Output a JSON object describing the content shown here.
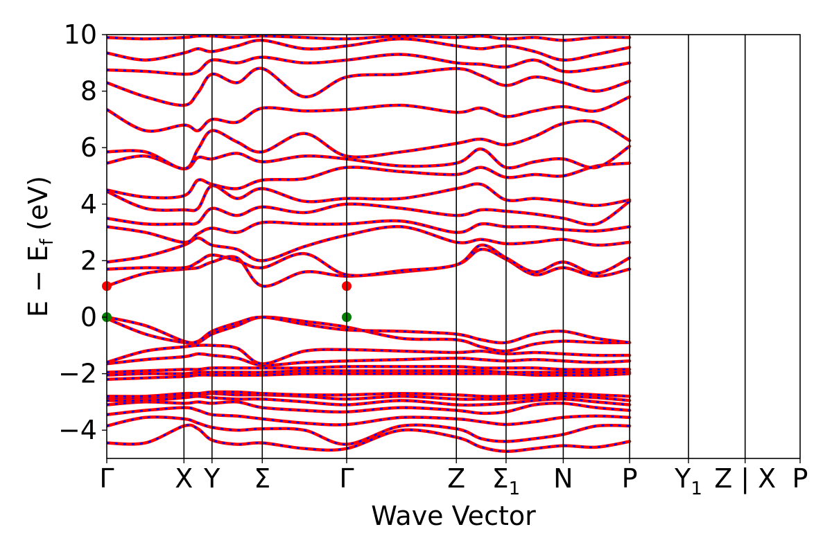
{
  "chart_data": {
    "type": "line",
    "title": "",
    "xlabel": "Wave Vector",
    "ylabel_main": "E − E",
    "ylabel_sub": "f",
    "ylabel_unit": "(eV)",
    "ylim": [
      -5,
      10
    ],
    "yticks": [
      -4,
      -2,
      0,
      2,
      4,
      6,
      8,
      10
    ],
    "ytick_labels": [
      "−4",
      "−2",
      "0",
      "2",
      "4",
      "6",
      "8",
      "10"
    ],
    "kpath": [
      {
        "label": "Γ",
        "sub": "",
        "x": 0.0
      },
      {
        "label": "X",
        "sub": "",
        "x": 0.278
      },
      {
        "label": "Y",
        "sub": "",
        "x": 0.379
      },
      {
        "label": "Σ",
        "sub": "",
        "x": 0.56
      },
      {
        "label": "Γ",
        "sub": "",
        "x": 0.864
      },
      {
        "label": "Z",
        "sub": "",
        "x": 1.259
      },
      {
        "label": "Σ",
        "sub": "1",
        "x": 1.438
      },
      {
        "label": "N",
        "sub": "",
        "x": 1.644
      },
      {
        "label": "P",
        "sub": "",
        "x": 1.883
      },
      {
        "label": "Y",
        "sub": "1",
        "x": 2.095
      },
      {
        "label": "Z | X",
        "sub": "",
        "x": 2.299
      },
      {
        "label": "P",
        "sub": "",
        "x": 2.497
      }
    ],
    "grid": false,
    "colors": {
      "bands_primary": "#ff0000",
      "bands_overlay": "#0000ff",
      "vbm_marker": "#008000",
      "cbm_marker": "#ff0000",
      "kpoint_lines": "#000000"
    },
    "markers": [
      {
        "name": "VBM",
        "x": 0.0,
        "y": 0.0,
        "color": "#008000"
      },
      {
        "name": "VBM",
        "x": 0.864,
        "y": 0.0,
        "color": "#008000"
      },
      {
        "name": "CBM",
        "x": 0.0,
        "y": 1.1,
        "color": "#ff0000"
      },
      {
        "name": "CBM",
        "x": 0.864,
        "y": 1.1,
        "color": "#ff0000"
      }
    ],
    "series": [
      {
        "values": [
          -4.45,
          -4.45,
          -3.85,
          -3.95,
          -4.35,
          -4.5,
          -4.45,
          -4.65,
          -4.65,
          -4.0,
          -4.25,
          -4.6,
          -4.75,
          -4.65,
          -4.55,
          -4.6,
          -4.4
        ]
      },
      {
        "values": [
          -3.85,
          -3.55,
          -3.6,
          -3.75,
          -3.9,
          -4.0,
          -3.95,
          -4.0,
          -4.5,
          -3.85,
          -3.95,
          -4.3,
          -4.4,
          -4.3,
          -4.15,
          -3.85,
          -3.85
        ]
      },
      {
        "values": [
          -3.45,
          -3.3,
          -3.2,
          -3.3,
          -3.45,
          -3.5,
          -3.6,
          -3.75,
          -3.8,
          -3.55,
          -3.6,
          -3.7,
          -3.8,
          -3.7,
          -3.55,
          -3.5,
          -3.55
        ]
      },
      {
        "values": [
          -3.1,
          -3.0,
          -3.05,
          -3.0,
          -3.05,
          -3.0,
          -3.2,
          -3.3,
          -3.35,
          -3.2,
          -3.3,
          -3.4,
          -3.35,
          -3.1,
          -3.05,
          -3.2,
          -3.3
        ]
      },
      {
        "values": [
          -2.95,
          -2.95,
          -2.85,
          -2.8,
          -2.85,
          -2.9,
          -2.9,
          -3.0,
          -3.1,
          -2.95,
          -3.1,
          -3.1,
          -3.05,
          -2.95,
          -2.9,
          -3.0,
          -3.1
        ]
      },
      {
        "values": [
          -2.85,
          -2.85,
          -2.75,
          -2.75,
          -2.7,
          -2.75,
          -2.75,
          -2.8,
          -2.9,
          -2.8,
          -2.9,
          -2.9,
          -2.9,
          -2.85,
          -2.8,
          -2.85,
          -2.95
        ]
      },
      {
        "values": [
          -2.8,
          -2.8,
          -2.7,
          -2.7,
          -2.65,
          -2.65,
          -2.7,
          -2.75,
          -2.75,
          -2.7,
          -2.75,
          -2.8,
          -2.8,
          -2.75,
          -2.7,
          -2.75,
          -2.8
        ]
      },
      {
        "values": [
          -2.2,
          -2.15,
          -2.1,
          -2.05,
          -2.05,
          -2.05,
          -2.05,
          -2.0,
          -2.0,
          -2.0,
          -2.0,
          -2.0,
          -2.0,
          -2.05,
          -2.05,
          -2.05,
          -2.0
        ]
      },
      {
        "values": [
          -2.05,
          -2.0,
          -2.0,
          -1.95,
          -1.95,
          -1.95,
          -1.95,
          -1.9,
          -1.9,
          -1.9,
          -1.9,
          -1.9,
          -1.95,
          -1.95,
          -1.95,
          -1.95,
          -1.95
        ]
      },
      {
        "values": [
          -1.95,
          -1.9,
          -1.85,
          -1.85,
          -1.8,
          -1.8,
          -1.8,
          -1.8,
          -1.75,
          -1.75,
          -1.75,
          -1.8,
          -1.8,
          -1.8,
          -1.85,
          -1.85,
          -1.85
        ]
      },
      {
        "values": [
          -1.65,
          -1.5,
          -1.4,
          -1.3,
          -1.35,
          -1.45,
          -1.7,
          -1.6,
          -1.55,
          -1.5,
          -1.45,
          -1.5,
          -1.55,
          -1.5,
          -1.55,
          -1.6,
          -1.55
        ]
      },
      {
        "values": [
          -1.6,
          -1.2,
          -1.05,
          -1.0,
          -1.0,
          -1.1,
          -1.65,
          -1.2,
          -1.15,
          -1.2,
          -1.25,
          -1.2,
          -1.3,
          -1.25,
          -1.3,
          -1.35,
          -1.35
        ]
      },
      {
        "values": [
          -0.05,
          -0.6,
          -0.9,
          -0.9,
          -0.6,
          -0.3,
          0.0,
          -0.15,
          -0.35,
          -0.75,
          -0.8,
          -1.05,
          -1.2,
          -0.95,
          -0.85,
          -0.9,
          -0.9
        ]
      },
      {
        "values": [
          0.0,
          -0.3,
          -0.85,
          -0.85,
          -0.5,
          -0.2,
          0.0,
          -0.25,
          -0.45,
          -0.5,
          -0.6,
          -0.8,
          -0.9,
          -0.6,
          -0.5,
          -0.75,
          -0.9
        ]
      },
      {
        "values": [
          1.1,
          1.55,
          1.7,
          1.75,
          1.95,
          2.1,
          1.1,
          1.6,
          1.45,
          1.6,
          1.85,
          2.4,
          2.05,
          1.5,
          1.75,
          1.45,
          1.7
        ]
      },
      {
        "values": [
          1.7,
          1.75,
          1.75,
          1.95,
          2.2,
          2.0,
          1.75,
          2.25,
          1.5,
          1.65,
          1.85,
          2.55,
          2.1,
          1.6,
          1.95,
          1.55,
          2.1
        ]
      },
      {
        "values": [
          1.95,
          2.15,
          2.55,
          2.8,
          2.55,
          2.4,
          2.0,
          2.5,
          2.9,
          3.2,
          2.65,
          2.75,
          2.6,
          2.65,
          2.75,
          2.55,
          2.65
        ]
      },
      {
        "values": [
          3.2,
          3.0,
          2.65,
          2.95,
          3.15,
          3.0,
          3.35,
          3.3,
          3.3,
          3.4,
          3.0,
          3.3,
          3.2,
          3.2,
          3.1,
          3.05,
          3.2
        ]
      },
      {
        "values": [
          3.5,
          3.3,
          3.3,
          3.35,
          3.85,
          3.6,
          3.9,
          3.7,
          4.0,
          3.85,
          3.6,
          3.8,
          3.75,
          3.65,
          3.5,
          3.3,
          4.1
        ]
      },
      {
        "values": [
          4.45,
          3.85,
          3.8,
          3.85,
          4.65,
          4.2,
          4.55,
          4.1,
          4.2,
          4.2,
          4.55,
          4.7,
          4.15,
          4.2,
          4.1,
          3.95,
          4.15
        ]
      },
      {
        "values": [
          4.5,
          4.25,
          4.3,
          4.85,
          4.7,
          4.55,
          4.85,
          4.9,
          5.3,
          5.15,
          5.05,
          5.3,
          4.95,
          5.05,
          5.0,
          5.35,
          5.45
        ]
      },
      {
        "values": [
          5.45,
          5.7,
          5.25,
          5.65,
          5.6,
          5.8,
          5.5,
          5.7,
          5.6,
          5.35,
          5.45,
          5.95,
          5.3,
          5.5,
          5.6,
          5.3,
          6.05
        ]
      },
      {
        "values": [
          5.85,
          5.85,
          5.25,
          5.95,
          6.6,
          6.2,
          5.85,
          6.5,
          5.7,
          5.85,
          6.15,
          6.3,
          6.1,
          6.4,
          6.85,
          6.9,
          6.25
        ]
      },
      {
        "values": [
          7.35,
          6.6,
          6.8,
          6.6,
          7.0,
          6.9,
          7.4,
          7.3,
          7.35,
          7.5,
          7.25,
          7.4,
          7.1,
          7.3,
          7.45,
          7.3,
          7.8
        ]
      },
      {
        "values": [
          8.3,
          7.8,
          7.5,
          7.95,
          8.6,
          8.3,
          8.8,
          7.8,
          8.5,
          8.6,
          8.8,
          8.55,
          8.2,
          8.5,
          8.3,
          8.0,
          8.35
        ]
      },
      {
        "values": [
          8.75,
          8.7,
          8.6,
          8.7,
          9.1,
          9.0,
          9.2,
          9.0,
          9.1,
          9.3,
          9.0,
          8.95,
          8.85,
          9.1,
          8.7,
          8.8,
          9.0
        ]
      },
      {
        "values": [
          9.35,
          9.1,
          9.35,
          9.5,
          9.4,
          9.6,
          9.8,
          9.5,
          9.6,
          9.85,
          9.6,
          9.5,
          9.6,
          9.4,
          9.1,
          9.3,
          9.55
        ]
      },
      {
        "values": [
          9.9,
          9.85,
          9.9,
          9.95,
          9.95,
          9.9,
          9.95,
          9.9,
          9.85,
          9.95,
          9.9,
          9.95,
          9.85,
          9.9,
          9.8,
          9.9,
          9.9
        ]
      }
    ]
  }
}
